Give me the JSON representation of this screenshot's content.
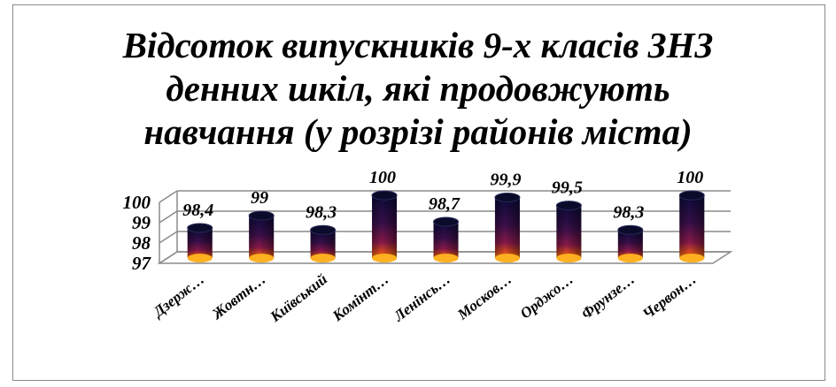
{
  "chart_data": {
    "type": "bar",
    "title_lines": [
      "Відсоток випускників 9-х класів ЗНЗ",
      "денних шкіл, які продовжують",
      "навчання (у розрізі районів міста)"
    ],
    "categories": [
      "Дзерж…",
      "Жовтн…",
      "Київський",
      "Комінт…",
      "Ленінсь…",
      "Москов…",
      "Орджо…",
      "Фрунзе…",
      "Червон…"
    ],
    "values": [
      98.4,
      99,
      98.3,
      100,
      98.7,
      99.9,
      99.5,
      98.3,
      100
    ],
    "data_labels": [
      "98,4",
      "99",
      "98,3",
      "100",
      "98,7",
      "99,9",
      "99,5",
      "98,3",
      "100"
    ],
    "y_ticks": [
      "100",
      "99",
      "98",
      "97"
    ],
    "ylim": [
      97,
      100
    ],
    "grid": true,
    "legend": "none",
    "colors": {
      "bar_top": "#0a0a3a",
      "bar_mid": "#5a1050",
      "bar_bottom": "#ff9a20"
    }
  }
}
